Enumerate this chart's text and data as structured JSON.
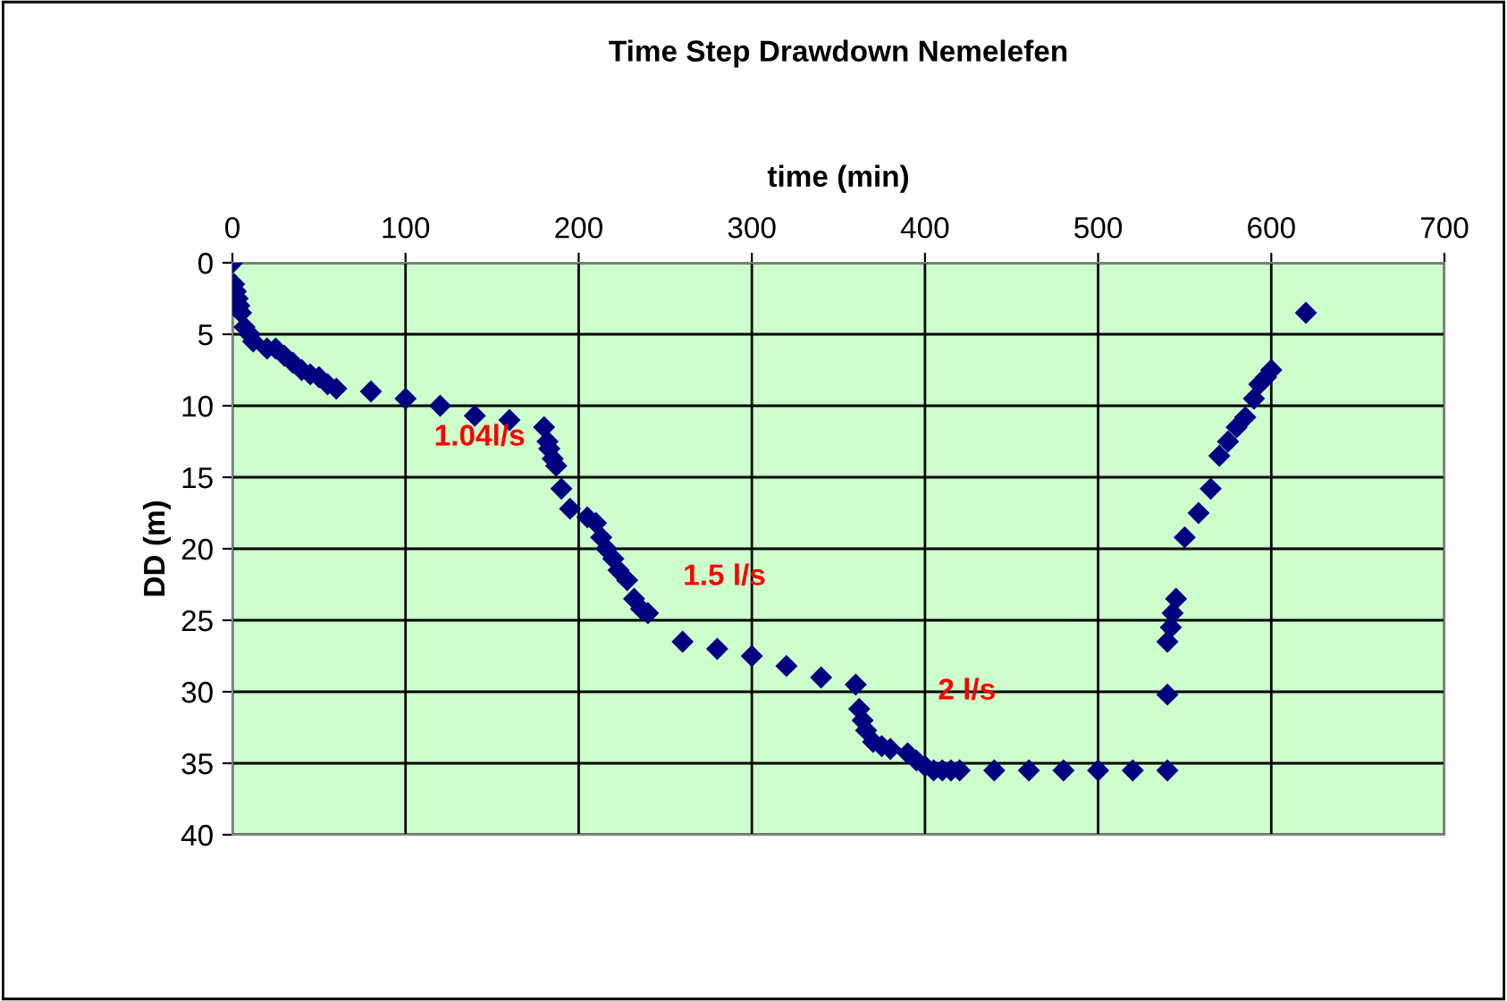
{
  "chart_data": {
    "type": "scatter",
    "title": "Time Step Drawdown Nemelefen",
    "xlabel": "time (min)",
    "ylabel": "DD (m)",
    "x": [
      0,
      1,
      2,
      3,
      4,
      5,
      7,
      10,
      12,
      20,
      25,
      30,
      35,
      40,
      45,
      50,
      55,
      60,
      80,
      100,
      120,
      140,
      160,
      180,
      182,
      183,
      185,
      187,
      190,
      195,
      205,
      210,
      213,
      216,
      220,
      223,
      228,
      232,
      236,
      240,
      260,
      280,
      300,
      320,
      340,
      360,
      362,
      364,
      366,
      370,
      375,
      380,
      390,
      395,
      400,
      405,
      410,
      415,
      420,
      440,
      460,
      480,
      500,
      520,
      540,
      540,
      540,
      542,
      543,
      545,
      550,
      558,
      565,
      570,
      575,
      580,
      585,
      590,
      593,
      597,
      600,
      620
    ],
    "series": [
      {
        "color": "#000080",
        "values": [
          0,
          1.5,
          2,
          2.5,
          3,
          3.5,
          4.5,
          5,
          5.5,
          6,
          6,
          6.5,
          7,
          7.5,
          7.8,
          8,
          8.5,
          8.8,
          9,
          9.5,
          10,
          10.7,
          11,
          11.5,
          12.5,
          13,
          13.7,
          14.2,
          15.8,
          17.2,
          17.8,
          18.2,
          19.2,
          20,
          20.7,
          21.5,
          22.2,
          23.5,
          24.2,
          24.5,
          26.5,
          27,
          27.5,
          28.2,
          29,
          29.5,
          31.2,
          32,
          32.7,
          33.5,
          33.8,
          34,
          34.3,
          34.8,
          35.2,
          35.5,
          35.5,
          35.5,
          35.5,
          35.5,
          35.5,
          35.5,
          35.5,
          35.5,
          35.5,
          30.2,
          26.5,
          25.5,
          24.5,
          23.5,
          19.2,
          17.5,
          15.8,
          13.5,
          12.5,
          11.5,
          10.8,
          9.5,
          8.5,
          8,
          7.5,
          3.5
        ]
      }
    ],
    "marker": "diamond",
    "xlim": [
      0,
      700
    ],
    "xticks": [
      0,
      100,
      200,
      300,
      400,
      500,
      600,
      700
    ],
    "ylim": [
      40,
      0
    ],
    "yticks": [
      0,
      5,
      10,
      15,
      20,
      25,
      30,
      35,
      40
    ],
    "grid": true,
    "annotations": [
      "1.04l/s",
      "1.5 l/s",
      "2 l/s"
    ]
  }
}
